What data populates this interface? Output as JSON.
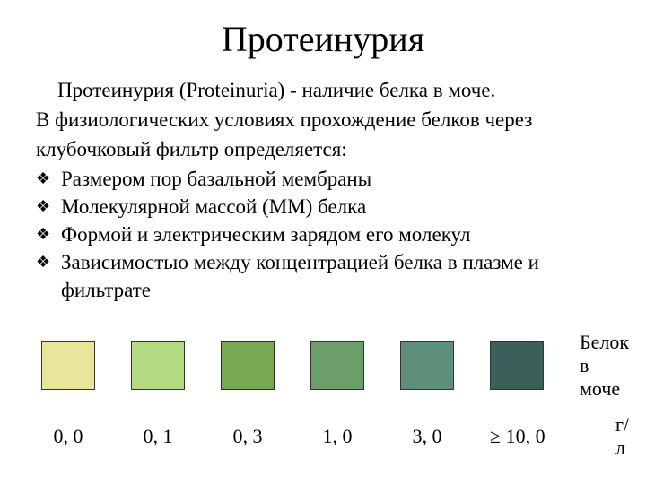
{
  "title": "Протеинурия",
  "intro": "Протеинурия (Proteinuria) - наличие белка в моче.",
  "lead1": "В физиологических условиях прохождение белков через",
  "lead2": "клубочковый фильтр определяется:",
  "bullets": [
    "Размером пор базальной мембраны",
    "Молекулярной массой (ММ) белка",
    "Формой и электрическим зарядом его молекул",
    "Зависимостью между концентрацией белка в плазме и фильтрате"
  ],
  "scale": {
    "label": "Белок в моче",
    "unit": "г/л",
    "swatches": [
      {
        "color": "#e8e69a",
        "value": "0, 0"
      },
      {
        "color": "#b4da82",
        "value": "0, 1"
      },
      {
        "color": "#77a853",
        "value": "0, 3"
      },
      {
        "color": "#6c9f6a",
        "value": "1, 0"
      },
      {
        "color": "#5e8f7a",
        "value": "3, 0"
      },
      {
        "color": "#3a6059",
        "value": "≥  10, 0"
      }
    ]
  }
}
